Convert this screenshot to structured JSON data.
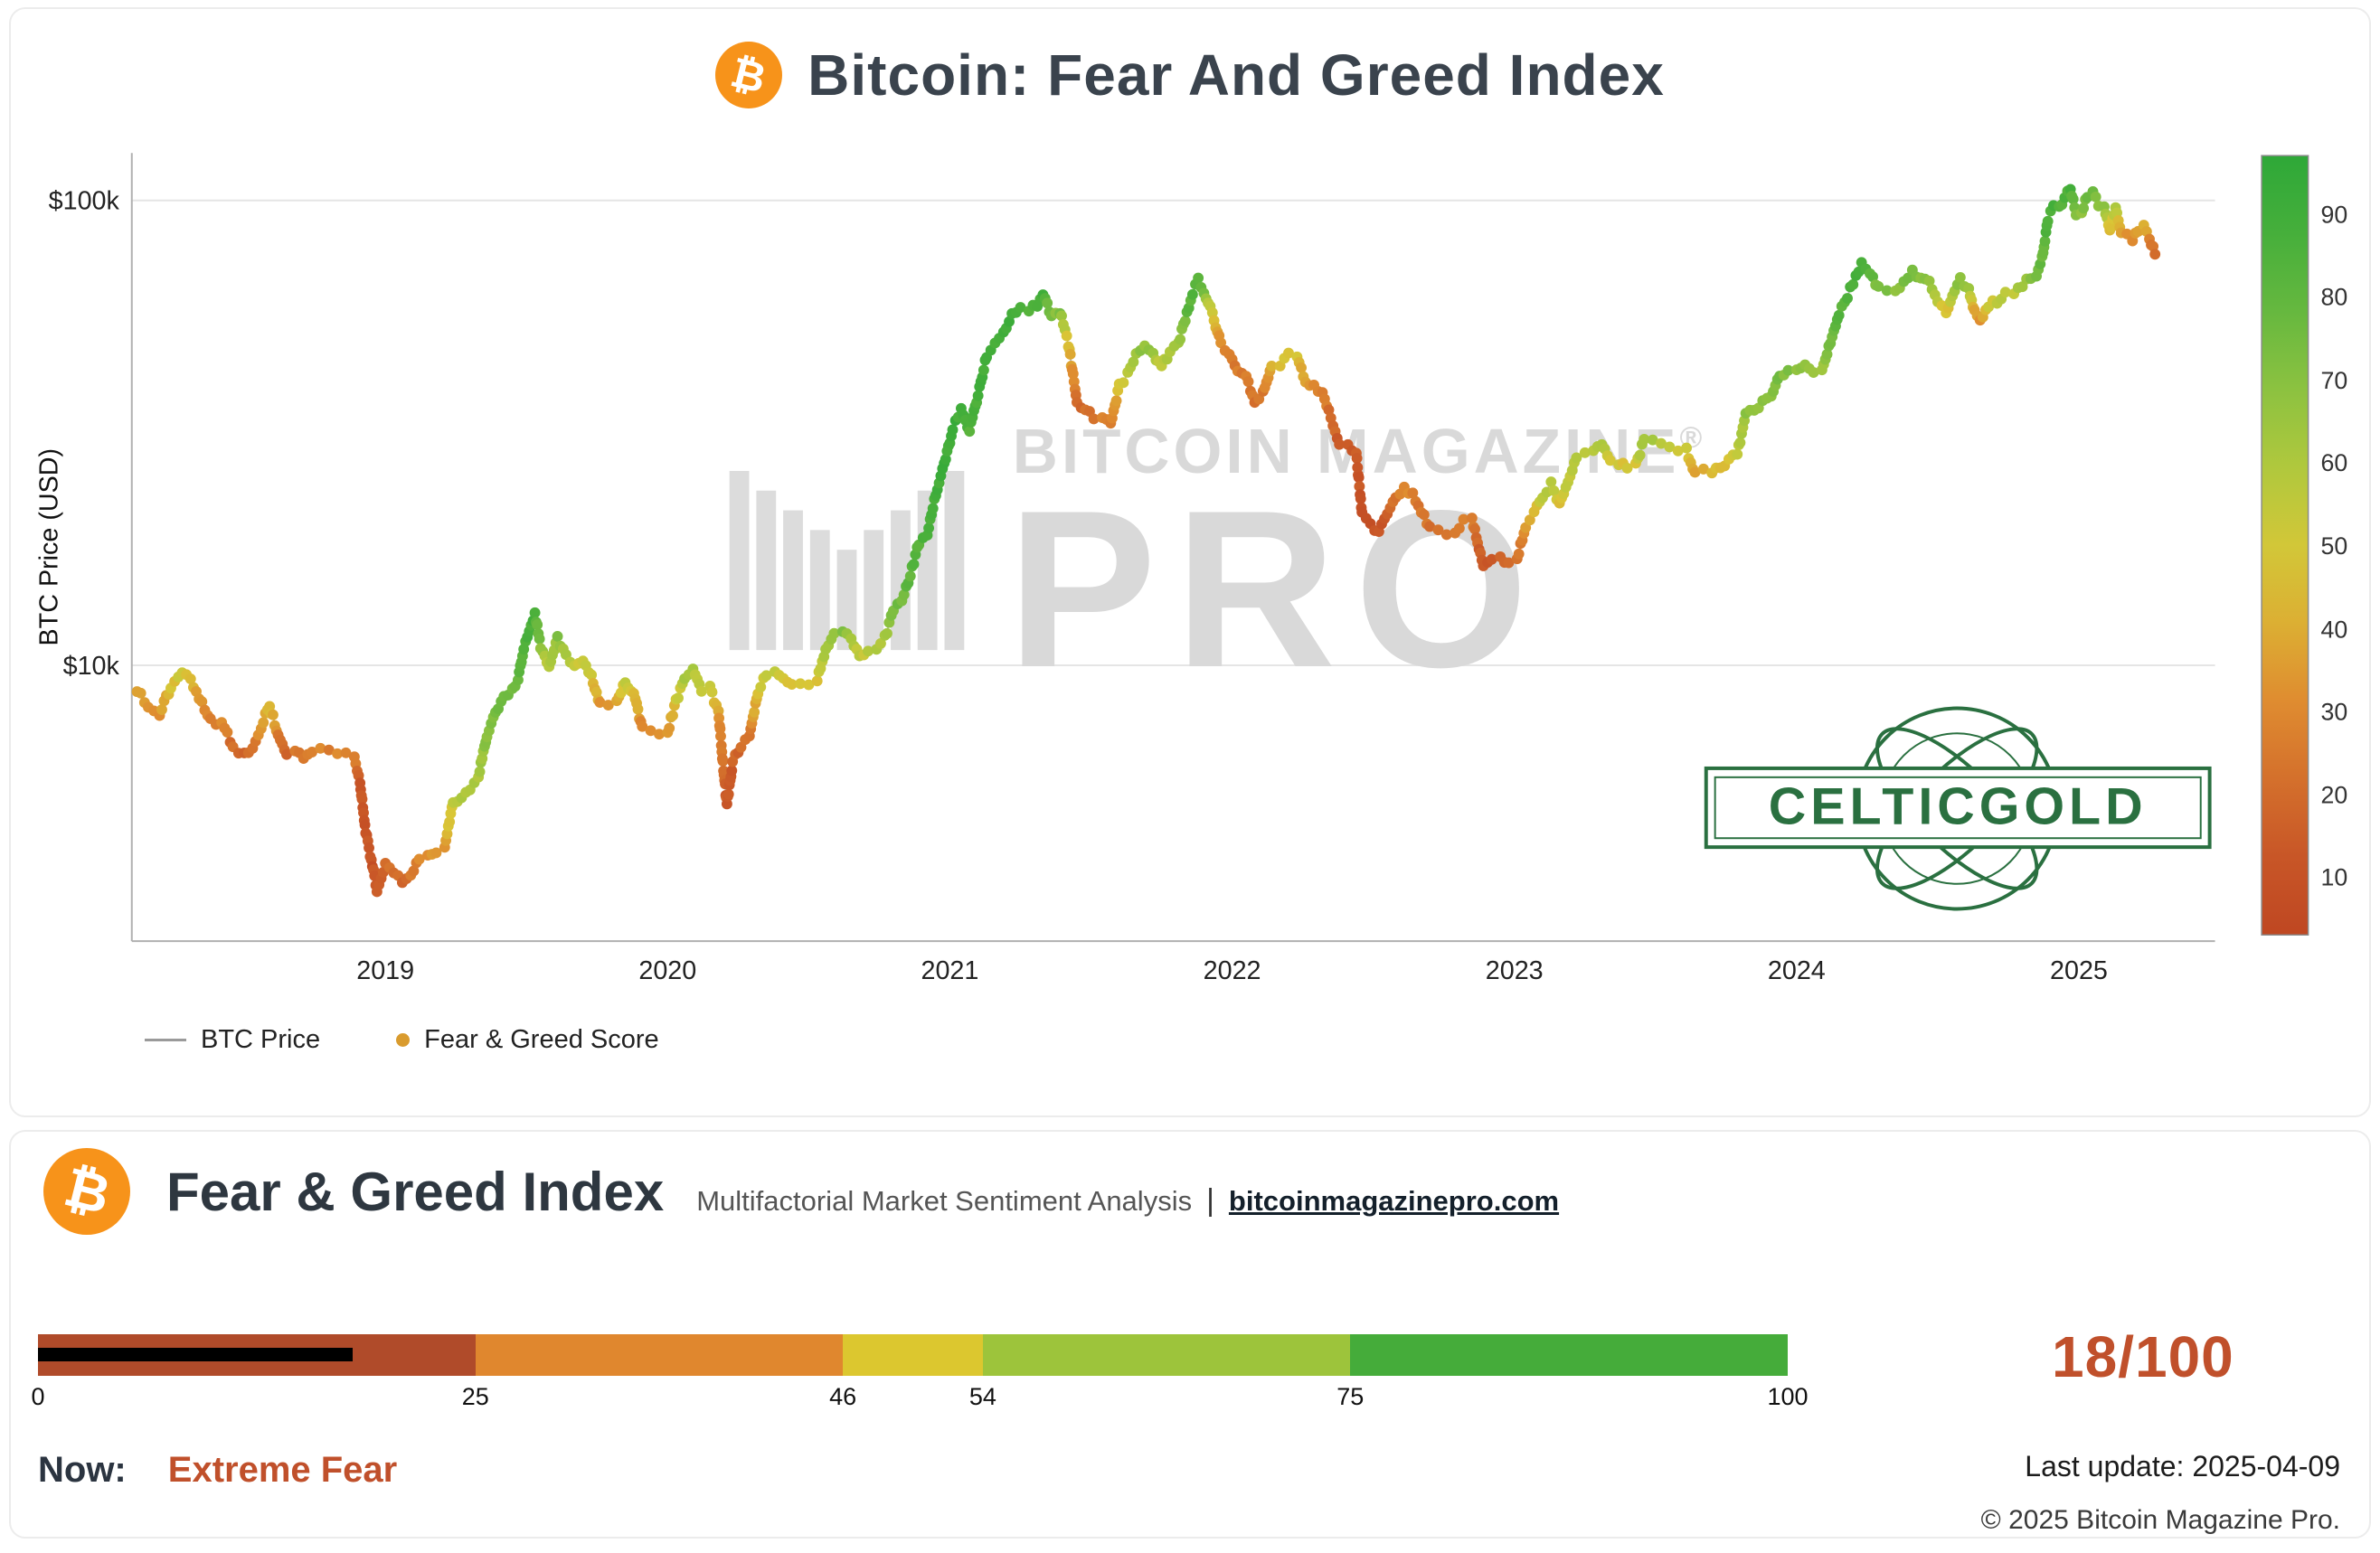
{
  "header": {
    "title": "Bitcoin: Fear And Greed Index"
  },
  "icons": {
    "bitcoin": "₿"
  },
  "watermark": {
    "line1": "BITCOIN MAGAZINE",
    "reg": "®",
    "line2": "PRO"
  },
  "overlay_logo": {
    "text": "CELTICGOLD"
  },
  "legend": {
    "price_label": "BTC Price",
    "score_label": "Fear & Greed Score",
    "dot_color": "#d99b2e",
    "line_color": "#9a9a9a"
  },
  "panel": {
    "title": "Fear & Greed Index",
    "subtitle": "Multifactorial Market Sentiment Analysis",
    "separator": "|",
    "site": "bitcoinmagazinepro.com",
    "score_display": "18/100",
    "now_label": "Now:",
    "now_value": "Extreme Fear",
    "last_update": "Last update: 2025-04-09",
    "copyright": "© 2025 Bitcoin Magazine Pro."
  },
  "gauge": {
    "min": 0,
    "max": 100,
    "value": 18,
    "ticks": [
      0,
      25,
      46,
      54,
      75,
      100
    ],
    "segments": [
      {
        "from": 0,
        "to": 25,
        "color": "#b04b2a"
      },
      {
        "from": 25,
        "to": 46,
        "color": "#e0872e"
      },
      {
        "from": 46,
        "to": 54,
        "color": "#dcc72f"
      },
      {
        "from": 54,
        "to": 75,
        "color": "#9dc43b"
      },
      {
        "from": 75,
        "to": 100,
        "color": "#45ac3a"
      }
    ],
    "indicator_color": "#000000"
  },
  "colors": {
    "accent_orange": "#f7931a",
    "score_red": "#c0502b",
    "title_text": "#3a434d"
  },
  "chart_data": {
    "type": "line",
    "title": "Bitcoin: Fear And Greed Index",
    "xlabel": "",
    "ylabel": "BTC Price (USD)",
    "y_scale": "log",
    "grid": "horizontal",
    "x_ticks": [
      2019,
      2020,
      2021,
      2022,
      2023,
      2024,
      2025
    ],
    "y_ticks": [
      {
        "value": 100000,
        "label": "$100k"
      },
      {
        "value": 10000,
        "label": "$10k"
      }
    ],
    "colorbar": {
      "label_values": [
        90,
        80,
        70,
        60,
        50,
        40,
        30,
        20,
        10
      ],
      "domain": [
        0,
        100
      ]
    },
    "colormap_stops": [
      [
        0,
        "#bf4722"
      ],
      [
        10,
        "#c85627"
      ],
      [
        20,
        "#d4702c"
      ],
      [
        30,
        "#df8c30"
      ],
      [
        40,
        "#dcaf33"
      ],
      [
        48,
        "#d9c636"
      ],
      [
        55,
        "#c1ca3c"
      ],
      [
        65,
        "#9fc63e"
      ],
      [
        75,
        "#79bd41"
      ],
      [
        85,
        "#52b23c"
      ],
      [
        100,
        "#2ea838"
      ]
    ],
    "points_format": [
      "decimal_year",
      "btc_price_usd",
      "fear_greed_score"
    ],
    "points": [
      [
        2018.12,
        8900,
        40
      ],
      [
        2018.16,
        8200,
        35
      ],
      [
        2018.2,
        7900,
        32
      ],
      [
        2018.24,
        9000,
        45
      ],
      [
        2018.28,
        9700,
        52
      ],
      [
        2018.31,
        9300,
        45
      ],
      [
        2018.34,
        8500,
        35
      ],
      [
        2018.38,
        7600,
        28
      ],
      [
        2018.42,
        7500,
        28
      ],
      [
        2018.46,
        6700,
        18
      ],
      [
        2018.5,
        6400,
        15
      ],
      [
        2018.53,
        6700,
        22
      ],
      [
        2018.56,
        7400,
        32
      ],
      [
        2018.59,
        8200,
        45
      ],
      [
        2018.62,
        7100,
        25
      ],
      [
        2018.65,
        6400,
        16
      ],
      [
        2018.68,
        6500,
        22
      ],
      [
        2018.71,
        6300,
        20
      ],
      [
        2018.74,
        6500,
        25
      ],
      [
        2018.77,
        6600,
        28
      ],
      [
        2018.8,
        6500,
        26
      ],
      [
        2018.83,
        6400,
        26
      ],
      [
        2018.86,
        6400,
        28
      ],
      [
        2018.89,
        6350,
        26
      ],
      [
        2018.91,
        5600,
        12
      ],
      [
        2018.93,
        4400,
        8
      ],
      [
        2018.95,
        3800,
        8
      ],
      [
        2018.97,
        3300,
        10
      ],
      [
        2019.0,
        3750,
        18
      ],
      [
        2019.03,
        3600,
        20
      ],
      [
        2019.06,
        3450,
        18
      ],
      [
        2019.09,
        3550,
        22
      ],
      [
        2019.12,
        3850,
        28
      ],
      [
        2019.15,
        3900,
        30
      ],
      [
        2019.18,
        4000,
        32
      ],
      [
        2019.21,
        4050,
        35
      ],
      [
        2019.24,
        5050,
        55
      ],
      [
        2019.27,
        5250,
        58
      ],
      [
        2019.3,
        5450,
        60
      ],
      [
        2019.33,
        5750,
        62
      ],
      [
        2019.36,
        7100,
        72
      ],
      [
        2019.39,
        7950,
        75
      ],
      [
        2019.42,
        8600,
        78
      ],
      [
        2019.45,
        8800,
        76
      ],
      [
        2019.47,
        9300,
        80
      ],
      [
        2019.49,
        10800,
        85
      ],
      [
        2019.51,
        11900,
        88
      ],
      [
        2019.53,
        12900,
        90
      ],
      [
        2019.55,
        11000,
        70
      ],
      [
        2019.58,
        9800,
        55
      ],
      [
        2019.61,
        11400,
        72
      ],
      [
        2019.64,
        10500,
        60
      ],
      [
        2019.67,
        9900,
        52
      ],
      [
        2019.7,
        10300,
        56
      ],
      [
        2019.73,
        9500,
        48
      ],
      [
        2019.76,
        8300,
        35
      ],
      [
        2019.79,
        8250,
        36
      ],
      [
        2019.82,
        8300,
        38
      ],
      [
        2019.85,
        9250,
        55
      ],
      [
        2019.88,
        8650,
        45
      ],
      [
        2019.91,
        7300,
        28
      ],
      [
        2019.94,
        7250,
        30
      ],
      [
        2019.97,
        7150,
        30
      ],
      [
        2020.0,
        7200,
        32
      ],
      [
        2020.03,
        8350,
        48
      ],
      [
        2020.06,
        9400,
        60
      ],
      [
        2020.09,
        9900,
        62
      ],
      [
        2020.12,
        8800,
        50
      ],
      [
        2020.15,
        8900,
        52
      ],
      [
        2020.18,
        7900,
        35
      ],
      [
        2020.21,
        5000,
        10
      ],
      [
        2020.23,
        6200,
        14
      ],
      [
        2020.26,
        6750,
        18
      ],
      [
        2020.29,
        7100,
        24
      ],
      [
        2020.32,
        8800,
        45
      ],
      [
        2020.35,
        9600,
        55
      ],
      [
        2020.38,
        9750,
        56
      ],
      [
        2020.41,
        9400,
        50
      ],
      [
        2020.44,
        9150,
        48
      ],
      [
        2020.47,
        9250,
        47
      ],
      [
        2020.5,
        9150,
        45
      ],
      [
        2020.53,
        9250,
        46
      ],
      [
        2020.56,
        10900,
        62
      ],
      [
        2020.59,
        11700,
        70
      ],
      [
        2020.62,
        11900,
        72
      ],
      [
        2020.65,
        11450,
        66
      ],
      [
        2020.68,
        10450,
        54
      ],
      [
        2020.71,
        10700,
        56
      ],
      [
        2020.74,
        10800,
        58
      ],
      [
        2020.77,
        11500,
        64
      ],
      [
        2020.8,
        13050,
        74
      ],
      [
        2020.83,
        13800,
        78
      ],
      [
        2020.86,
        15600,
        82
      ],
      [
        2020.89,
        18400,
        86
      ],
      [
        2020.92,
        19200,
        88
      ],
      [
        2020.95,
        23300,
        92
      ],
      [
        2020.98,
        27000,
        93
      ],
      [
        2021.01,
        32200,
        93
      ],
      [
        2021.04,
        35500,
        92
      ],
      [
        2021.07,
        32100,
        86
      ],
      [
        2021.1,
        38300,
        90
      ],
      [
        2021.13,
        46400,
        92
      ],
      [
        2021.16,
        48900,
        91
      ],
      [
        2021.19,
        52100,
        92
      ],
      [
        2021.22,
        57400,
        93
      ],
      [
        2021.25,
        58900,
        91
      ],
      [
        2021.28,
        58100,
        88
      ],
      [
        2021.31,
        59800,
        88
      ],
      [
        2021.33,
        63500,
        90
      ],
      [
        2021.36,
        56200,
        72
      ],
      [
        2021.39,
        57800,
        74
      ],
      [
        2021.42,
        49000,
        45
      ],
      [
        2021.45,
        37000,
        18
      ],
      [
        2021.48,
        35600,
        20
      ],
      [
        2021.51,
        33900,
        22
      ],
      [
        2021.54,
        34200,
        25
      ],
      [
        2021.57,
        33100,
        21
      ],
      [
        2021.6,
        39900,
        48
      ],
      [
        2021.63,
        42200,
        56
      ],
      [
        2021.66,
        46300,
        66
      ],
      [
        2021.69,
        48100,
        70
      ],
      [
        2021.72,
        47100,
        68
      ],
      [
        2021.75,
        43800,
        54
      ],
      [
        2021.78,
        47300,
        62
      ],
      [
        2021.81,
        49200,
        66
      ],
      [
        2021.84,
        57400,
        80
      ],
      [
        2021.86,
        63100,
        84
      ],
      [
        2021.88,
        67500,
        84
      ],
      [
        2021.9,
        63600,
        74
      ],
      [
        2021.93,
        57200,
        48
      ],
      [
        2021.96,
        49300,
        28
      ],
      [
        2021.99,
        46900,
        26
      ],
      [
        2022.02,
        43100,
        24
      ],
      [
        2022.05,
        41500,
        23
      ],
      [
        2022.08,
        36900,
        20
      ],
      [
        2022.11,
        38400,
        24
      ],
      [
        2022.14,
        43900,
        38
      ],
      [
        2022.17,
        44400,
        42
      ],
      [
        2022.2,
        46400,
        50
      ],
      [
        2022.23,
        45800,
        46
      ],
      [
        2022.26,
        41100,
        34
      ],
      [
        2022.29,
        39700,
        30
      ],
      [
        2022.32,
        38500,
        27
      ],
      [
        2022.35,
        34300,
        18
      ],
      [
        2022.38,
        30100,
        12
      ],
      [
        2022.41,
        29600,
        13
      ],
      [
        2022.44,
        28400,
        11
      ],
      [
        2022.46,
        21400,
        8
      ],
      [
        2022.49,
        20100,
        8
      ],
      [
        2022.52,
        19300,
        9
      ],
      [
        2022.55,
        21200,
        13
      ],
      [
        2022.58,
        23200,
        22
      ],
      [
        2022.61,
        23900,
        30
      ],
      [
        2022.64,
        23300,
        28
      ],
      [
        2022.67,
        21400,
        22
      ],
      [
        2022.7,
        19900,
        20
      ],
      [
        2022.73,
        19600,
        21
      ],
      [
        2022.76,
        19300,
        20
      ],
      [
        2022.79,
        19200,
        21
      ],
      [
        2022.82,
        20400,
        26
      ],
      [
        2022.85,
        20700,
        28
      ],
      [
        2022.87,
        18200,
        15
      ],
      [
        2022.89,
        16300,
        9
      ],
      [
        2022.92,
        16800,
        12
      ],
      [
        2022.95,
        17100,
        15
      ],
      [
        2022.98,
        16600,
        14
      ],
      [
        2023.01,
        16900,
        20
      ],
      [
        2023.04,
        19900,
        35
      ],
      [
        2023.07,
        21100,
        42
      ],
      [
        2023.1,
        23200,
        55
      ],
      [
        2023.13,
        24600,
        60
      ],
      [
        2023.16,
        22300,
        45
      ],
      [
        2023.19,
        24800,
        55
      ],
      [
        2023.22,
        28000,
        62
      ],
      [
        2023.25,
        28400,
        60
      ],
      [
        2023.28,
        28900,
        61
      ],
      [
        2023.31,
        29900,
        63
      ],
      [
        2023.34,
        27600,
        52
      ],
      [
        2023.37,
        27300,
        51
      ],
      [
        2023.4,
        26600,
        48
      ],
      [
        2023.43,
        27000,
        50
      ],
      [
        2023.46,
        30400,
        62
      ],
      [
        2023.49,
        30300,
        60
      ],
      [
        2023.52,
        29900,
        56
      ],
      [
        2023.55,
        29300,
        53
      ],
      [
        2023.58,
        29200,
        52
      ],
      [
        2023.61,
        29000,
        50
      ],
      [
        2023.64,
        26000,
        38
      ],
      [
        2023.67,
        26100,
        40
      ],
      [
        2023.7,
        25900,
        40
      ],
      [
        2023.73,
        26600,
        44
      ],
      [
        2023.76,
        27600,
        48
      ],
      [
        2023.79,
        28500,
        52
      ],
      [
        2023.82,
        34600,
        68
      ],
      [
        2023.85,
        35500,
        70
      ],
      [
        2023.88,
        37000,
        71
      ],
      [
        2023.91,
        37800,
        70
      ],
      [
        2023.94,
        41900,
        74
      ],
      [
        2023.97,
        43200,
        73
      ],
      [
        2024.0,
        42700,
        70
      ],
      [
        2024.03,
        44200,
        72
      ],
      [
        2024.06,
        42900,
        64
      ],
      [
        2024.09,
        43100,
        63
      ],
      [
        2024.12,
        49900,
        76
      ],
      [
        2024.15,
        57200,
        82
      ],
      [
        2024.18,
        62400,
        86
      ],
      [
        2024.21,
        68300,
        88
      ],
      [
        2024.23,
        73100,
        90
      ],
      [
        2024.26,
        69400,
        82
      ],
      [
        2024.29,
        64900,
        74
      ],
      [
        2024.32,
        63800,
        72
      ],
      [
        2024.35,
        64100,
        71
      ],
      [
        2024.38,
        67200,
        75
      ],
      [
        2024.41,
        69900,
        77
      ],
      [
        2024.44,
        67800,
        73
      ],
      [
        2024.47,
        66200,
        70
      ],
      [
        2024.5,
        60900,
        54
      ],
      [
        2024.53,
        57300,
        44
      ],
      [
        2024.56,
        63800,
        64
      ],
      [
        2024.58,
        67800,
        72
      ],
      [
        2024.61,
        64600,
        62
      ],
      [
        2024.63,
        57300,
        38
      ],
      [
        2024.65,
        54900,
        30
      ],
      [
        2024.68,
        59400,
        50
      ],
      [
        2024.71,
        60800,
        54
      ],
      [
        2024.74,
        63200,
        58
      ],
      [
        2024.77,
        62100,
        55
      ],
      [
        2024.8,
        66100,
        65
      ],
      [
        2024.83,
        68400,
        71
      ],
      [
        2024.85,
        69400,
        73
      ],
      [
        2024.87,
        75600,
        80
      ],
      [
        2024.89,
        90400,
        86
      ],
      [
        2024.91,
        97100,
        89
      ],
      [
        2024.93,
        96800,
        84
      ],
      [
        2024.95,
        101200,
        86
      ],
      [
        2024.97,
        106100,
        88
      ],
      [
        2024.99,
        93800,
        73
      ],
      [
        2025.01,
        94600,
        72
      ],
      [
        2025.03,
        102300,
        79
      ],
      [
        2025.05,
        104800,
        81
      ],
      [
        2025.07,
        97900,
        70
      ],
      [
        2025.09,
        96400,
        67
      ],
      [
        2025.11,
        86100,
        44
      ],
      [
        2025.13,
        96100,
        58
      ],
      [
        2025.15,
        84700,
        34
      ],
      [
        2025.17,
        84100,
        30
      ],
      [
        2025.19,
        82600,
        29
      ],
      [
        2025.21,
        86700,
        38
      ],
      [
        2025.23,
        87400,
        40
      ],
      [
        2025.25,
        82800,
        29
      ],
      [
        2025.27,
        76600,
        18
      ]
    ]
  }
}
